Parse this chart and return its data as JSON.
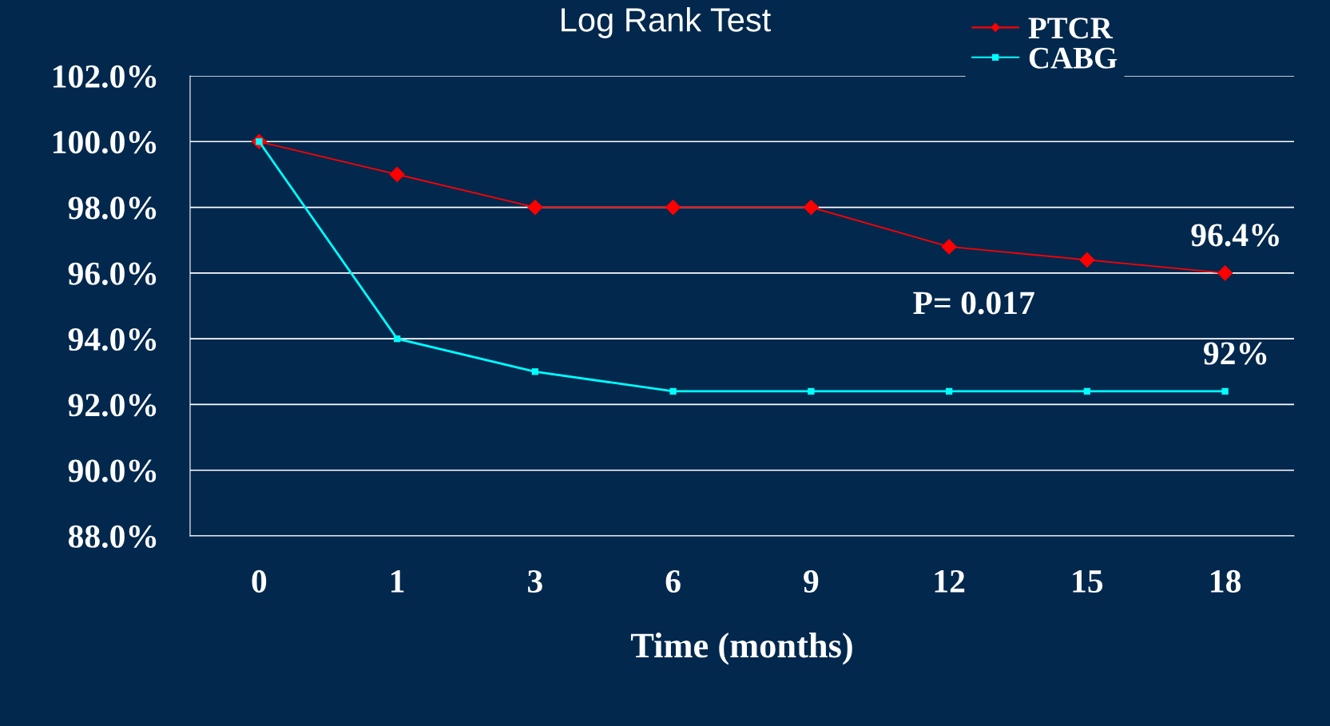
{
  "chart_data": {
    "type": "line",
    "title": "Log Rank Test",
    "xlabel": "Time (months)",
    "categories": [
      "0",
      "1",
      "3",
      "6",
      "9",
      "12",
      "15",
      "18"
    ],
    "series": [
      {
        "name": "PTCR",
        "color": "#ff0000",
        "marker": "diamond",
        "values": [
          100,
          99,
          98,
          98,
          98,
          96.8,
          96.4,
          96.0
        ]
      },
      {
        "name": "CABG",
        "color": "#00ffff",
        "marker": "square",
        "values": [
          100,
          94,
          93,
          92.4,
          92.4,
          92.4,
          92.4,
          92.4
        ]
      }
    ],
    "ylim": [
      88,
      102
    ],
    "yticks": [
      {
        "value": 88,
        "label": "88.0%"
      },
      {
        "value": 90,
        "label": "90.0%"
      },
      {
        "value": 92,
        "label": "92.0%"
      },
      {
        "value": 94,
        "label": "94.0%"
      },
      {
        "value": 96,
        "label": "96.0%"
      },
      {
        "value": 98,
        "label": "98.0%"
      },
      {
        "value": 100,
        "label": "100.0%"
      },
      {
        "value": 102,
        "label": "102.0%"
      }
    ],
    "grid": "y",
    "legend": "top right",
    "line_style": "solid",
    "annotations": [
      {
        "text": "96.4%",
        "x": "18",
        "y": 96.0
      },
      {
        "text": "92%",
        "x": "18",
        "y": 92.4
      },
      "P= 0.017"
    ]
  }
}
